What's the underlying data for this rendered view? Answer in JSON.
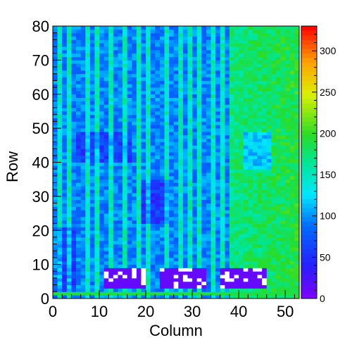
{
  "chart_data": {
    "type": "heatmap",
    "xlabel": "Column",
    "ylabel": "Row",
    "xlim": [
      0,
      53
    ],
    "ylim": [
      0,
      80
    ],
    "zlim": [
      0,
      330
    ],
    "x_ticks": [
      "0",
      "10",
      "20",
      "30",
      "40",
      "50"
    ],
    "y_ticks": [
      "0",
      "10",
      "20",
      "30",
      "40",
      "50",
      "60",
      "70",
      "80"
    ],
    "z_ticks": [
      "0",
      "50",
      "100",
      "150",
      "200",
      "250",
      "300"
    ],
    "bin_count": {
      "x": 53,
      "y": 80
    },
    "cell_values": {
      "background_base": 95,
      "right_region_base": 170,
      "right_region_start_column": 38,
      "bright_stripe_columns": [
        1,
        3,
        7,
        9,
        12,
        15,
        18,
        20,
        24,
        27,
        29,
        31,
        34,
        36,
        38
      ],
      "bright_stripe_boost": 55,
      "low_blocks": [
        {
          "columns": [
            5,
            16
          ],
          "rows": [
            40,
            48
          ],
          "value": 60
        },
        {
          "columns": [
            19,
            24
          ],
          "rows": [
            22,
            34
          ],
          "value": 55
        },
        {
          "columns": [
            41,
            46
          ],
          "rows": [
            38,
            48
          ],
          "value": 120
        },
        {
          "columns": [
            1,
            4
          ],
          "rows": [
            2,
            20
          ],
          "value": 60
        }
      ],
      "dead_blocks": [
        {
          "columns": [
            11,
            19
          ],
          "rows": [
            3,
            8
          ],
          "value": 12
        },
        {
          "columns": [
            23,
            32
          ],
          "rows": [
            3,
            8
          ],
          "value": 12
        },
        {
          "columns": [
            36,
            45
          ],
          "rows": [
            3,
            8
          ],
          "value": 12
        }
      ],
      "bottom_row_value": 190,
      "colorbar_max_color": "#ff0000",
      "colorbar_min_color": "#8000ff"
    },
    "grid": false,
    "palette": "rainbow"
  }
}
